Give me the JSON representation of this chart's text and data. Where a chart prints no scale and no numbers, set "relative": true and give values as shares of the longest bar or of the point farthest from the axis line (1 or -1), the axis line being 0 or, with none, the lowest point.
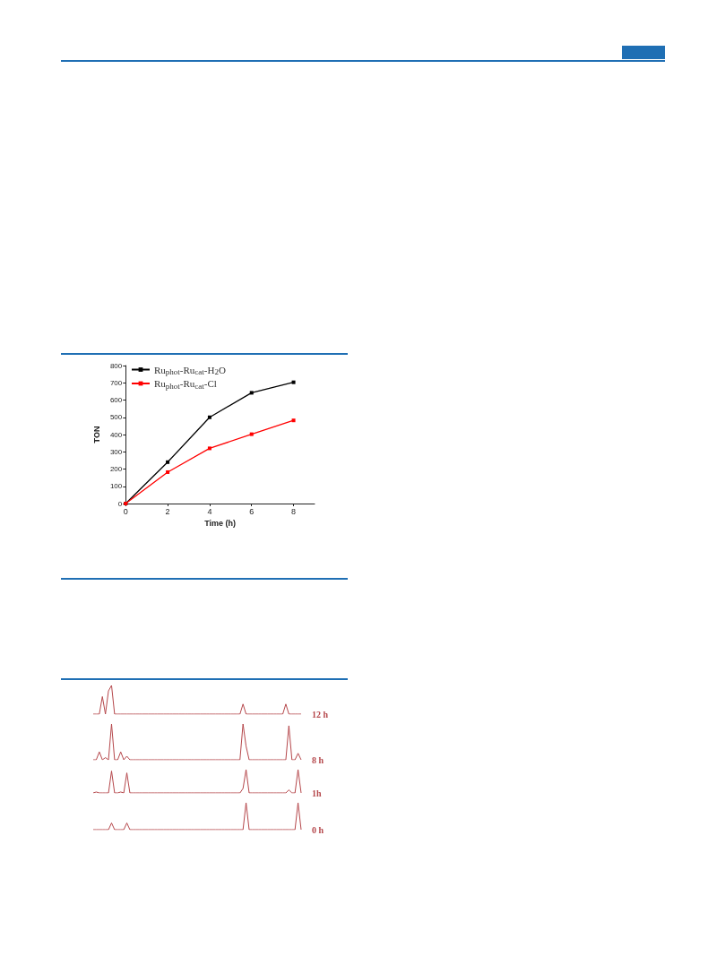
{
  "chart_data": [
    {
      "type": "line",
      "x": [
        0,
        2,
        4,
        6,
        8
      ],
      "xlabel": "Time (h)",
      "ylabel": "TON",
      "xlim": [
        0,
        9
      ],
      "xticks": [
        0,
        2,
        4,
        6,
        8
      ],
      "ylim": [
        0,
        800
      ],
      "yticks": [
        0,
        100,
        200,
        300,
        400,
        500,
        600,
        700,
        800
      ],
      "marker": "square",
      "legend": "top left",
      "grid": false,
      "series": [
        {
          "name": "Ru$_{phot}$-Ru$_{cat}$-H$_{2}$O",
          "color": "#000000",
          "values": [
            0,
            240,
            500,
            642,
            703
          ]
        },
        {
          "name": "Ru$_{phot}$-Ru$_{cat}$-Cl",
          "color": "#ff0000",
          "values": [
            0,
            182,
            320,
            402,
            482
          ]
        }
      ]
    },
    {
      "type": "line",
      "relative": true,
      "marker": "none",
      "categories": [
        null,
        null,
        null,
        null,
        null,
        null,
        null,
        null,
        null,
        null,
        null,
        null,
        null,
        null,
        null,
        null,
        null,
        null,
        null,
        null,
        null,
        null,
        null,
        null,
        null,
        null,
        null,
        null,
        null,
        null,
        null,
        null,
        null,
        null,
        null,
        null,
        null,
        null,
        null,
        null,
        null,
        null,
        null,
        null,
        null,
        null,
        null,
        null,
        null,
        null,
        null,
        null,
        null,
        null,
        null,
        null,
        null,
        null,
        null,
        null,
        null,
        null,
        null,
        null,
        null,
        null,
        null,
        null,
        null
      ],
      "series": [
        {
          "name": "12 h",
          "color": "#b5474b",
          "values": [
            0,
            0,
            0,
            0.61,
            0,
            0.81,
            1,
            0,
            0,
            0,
            0,
            0,
            0,
            0,
            0,
            0,
            0,
            0,
            0,
            0,
            0,
            0,
            0,
            0,
            0,
            0,
            0,
            0,
            0,
            0,
            0,
            0,
            0,
            0,
            0,
            0,
            0,
            0,
            0,
            0,
            0,
            0,
            0,
            0,
            0,
            0,
            0,
            0,
            0,
            0.35,
            0,
            0,
            0,
            0,
            0,
            0,
            0,
            0,
            0,
            0,
            0,
            0,
            0,
            0.35,
            0,
            0,
            0,
            0,
            0
          ]
        }
      ]
    },
    {
      "type": "line",
      "relative": true,
      "marker": "none",
      "categories": [
        null,
        null,
        null,
        null,
        null,
        null,
        null,
        null,
        null,
        null,
        null,
        null,
        null,
        null,
        null,
        null,
        null,
        null,
        null,
        null,
        null,
        null,
        null,
        null,
        null,
        null,
        null,
        null,
        null,
        null,
        null,
        null,
        null,
        null,
        null,
        null,
        null,
        null,
        null,
        null,
        null,
        null,
        null,
        null,
        null,
        null,
        null,
        null,
        null,
        null,
        null,
        null,
        null,
        null,
        null,
        null,
        null,
        null,
        null,
        null,
        null,
        null,
        null,
        null,
        null,
        null,
        null,
        null,
        null
      ],
      "series": [
        {
          "name": "8 h",
          "color": "#b5474b",
          "values": [
            0,
            0,
            0.22,
            0,
            0.06,
            0,
            1,
            0,
            0,
            0.22,
            0,
            0.1,
            0,
            0,
            0,
            0,
            0,
            0,
            0,
            0,
            0,
            0,
            0,
            0,
            0,
            0,
            0,
            0,
            0,
            0,
            0,
            0,
            0,
            0,
            0,
            0,
            0,
            0,
            0,
            0,
            0,
            0,
            0,
            0,
            0,
            0,
            0,
            0,
            0,
            1,
            0.38,
            0,
            0,
            0,
            0,
            0,
            0,
            0,
            0,
            0,
            0,
            0,
            0,
            0,
            0.95,
            0,
            0,
            0.18,
            0
          ]
        }
      ]
    },
    {
      "type": "line",
      "relative": true,
      "marker": "none",
      "categories": [
        null,
        null,
        null,
        null,
        null,
        null,
        null,
        null,
        null,
        null,
        null,
        null,
        null,
        null,
        null,
        null,
        null,
        null,
        null,
        null,
        null,
        null,
        null,
        null,
        null,
        null,
        null,
        null,
        null,
        null,
        null,
        null,
        null,
        null,
        null,
        null,
        null,
        null,
        null,
        null,
        null,
        null,
        null,
        null,
        null,
        null,
        null,
        null,
        null,
        null,
        null,
        null,
        null,
        null,
        null,
        null,
        null,
        null,
        null,
        null,
        null,
        null,
        null,
        null,
        null,
        null,
        null,
        null,
        null
      ],
      "series": [
        {
          "name": "1h",
          "color": "#b5474b",
          "values": [
            0,
            0.04,
            0,
            0,
            0,
            0,
            0.94,
            0,
            0,
            0.04,
            0,
            0.86,
            0,
            0,
            0,
            0,
            0,
            0,
            0,
            0,
            0,
            0,
            0,
            0,
            0,
            0,
            0,
            0,
            0,
            0,
            0,
            0,
            0,
            0,
            0,
            0,
            0,
            0,
            0,
            0,
            0,
            0,
            0,
            0,
            0,
            0,
            0,
            0,
            0,
            0.19,
            1,
            0,
            0,
            0,
            0,
            0,
            0,
            0,
            0,
            0,
            0,
            0,
            0,
            0,
            0.13,
            0,
            0,
            1,
            0
          ]
        }
      ]
    },
    {
      "type": "line",
      "relative": true,
      "marker": "none",
      "categories": [
        null,
        null,
        null,
        null,
        null,
        null,
        null,
        null,
        null,
        null,
        null,
        null,
        null,
        null,
        null,
        null,
        null,
        null,
        null,
        null,
        null,
        null,
        null,
        null,
        null,
        null,
        null,
        null,
        null,
        null,
        null,
        null,
        null,
        null,
        null,
        null,
        null,
        null,
        null,
        null,
        null,
        null,
        null,
        null,
        null,
        null,
        null,
        null,
        null,
        null,
        null,
        null,
        null,
        null,
        null,
        null,
        null,
        null,
        null,
        null,
        null,
        null,
        null,
        null,
        null,
        null,
        null,
        null,
        null
      ],
      "series": [
        {
          "name": "0 h",
          "color": "#b5474b",
          "values": [
            0,
            0,
            0,
            0,
            0,
            0,
            0.25,
            0,
            0,
            0,
            0,
            0.25,
            0,
            0,
            0,
            0,
            0,
            0,
            0,
            0,
            0,
            0,
            0,
            0,
            0,
            0,
            0,
            0,
            0,
            0,
            0,
            0,
            0,
            0,
            0,
            0,
            0,
            0,
            0,
            0,
            0,
            0,
            0,
            0,
            0,
            0,
            0,
            0,
            0,
            0,
            1,
            0,
            0,
            0,
            0,
            0,
            0,
            0,
            0,
            0,
            0,
            0,
            0,
            0,
            0,
            0,
            0,
            1,
            0
          ]
        }
      ]
    }
  ]
}
